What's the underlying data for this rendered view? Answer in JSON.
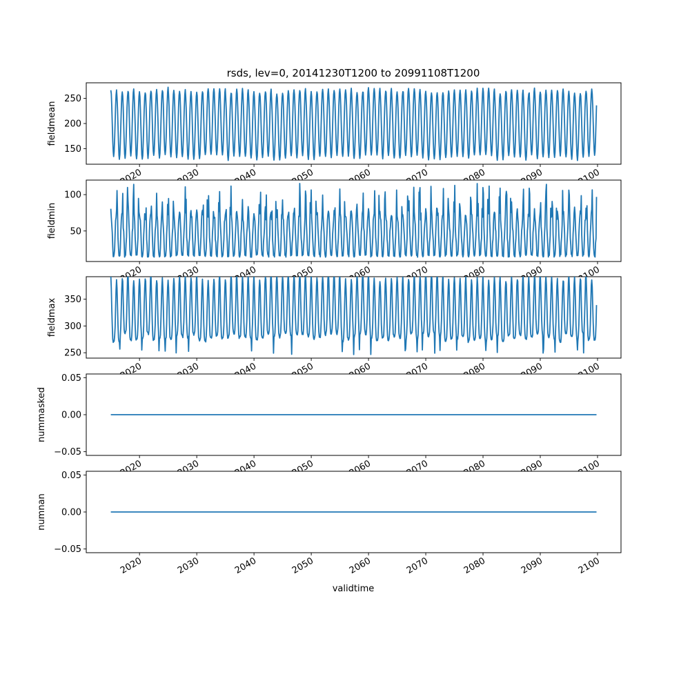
{
  "chart_data": {
    "type": "line",
    "title": "rsds, lev=0, 20141230T1200 to 20991108T1200",
    "xlabel": "validtime",
    "x_range": [
      2014.99,
      2099.86
    ],
    "xlim": [
      2010.7,
      2104.1
    ],
    "xticks": [
      2020,
      2030,
      2040,
      2050,
      2060,
      2070,
      2080,
      2090,
      2100
    ],
    "xtick_labels": [
      "2020",
      "2030",
      "2040",
      "2050",
      "2060",
      "2070",
      "2080",
      "2090",
      "2100"
    ],
    "shared_x": true,
    "line_color": "#1f77b4",
    "panels": [
      {
        "ylabel": "fieldmean",
        "ylim": [
          119,
          281
        ],
        "yticks": [
          150,
          200,
          250
        ],
        "ytick_labels": [
          "150",
          "200",
          "250"
        ],
        "pattern": "annual_cycle",
        "annual_min": 132,
        "annual_max": 265,
        "variation": 6
      },
      {
        "ylabel": "fieldmin",
        "ylim": [
          8,
          120
        ],
        "yticks": [
          50,
          100
        ],
        "ytick_labels": [
          "50",
          "100"
        ],
        "pattern": "annual_cycle_with_spikes",
        "annual_min": 14,
        "annual_max": 75,
        "spike_max": 116,
        "variation": 12
      },
      {
        "ylabel": "fieldmax",
        "ylim": [
          240,
          392
        ],
        "yticks": [
          250,
          300,
          350
        ],
        "ytick_labels": [
          "250",
          "300",
          "350"
        ],
        "pattern": "annual_cycle_double_peak",
        "annual_min": 265,
        "annual_max": 378,
        "secondary_peak": 320,
        "variation": 8
      },
      {
        "ylabel": "nummasked",
        "ylim": [
          -0.055,
          0.055
        ],
        "yticks": [
          -0.05,
          0.0,
          0.05
        ],
        "ytick_labels": [
          "−0.05",
          "0.00",
          "0.05"
        ],
        "pattern": "constant",
        "value": 0.0
      },
      {
        "ylabel": "numnan",
        "ylim": [
          -0.055,
          0.055
        ],
        "yticks": [
          -0.05,
          0.0,
          0.05
        ],
        "ytick_labels": [
          "−0.05",
          "0.00",
          "0.05"
        ],
        "pattern": "constant",
        "value": 0.0
      }
    ]
  }
}
